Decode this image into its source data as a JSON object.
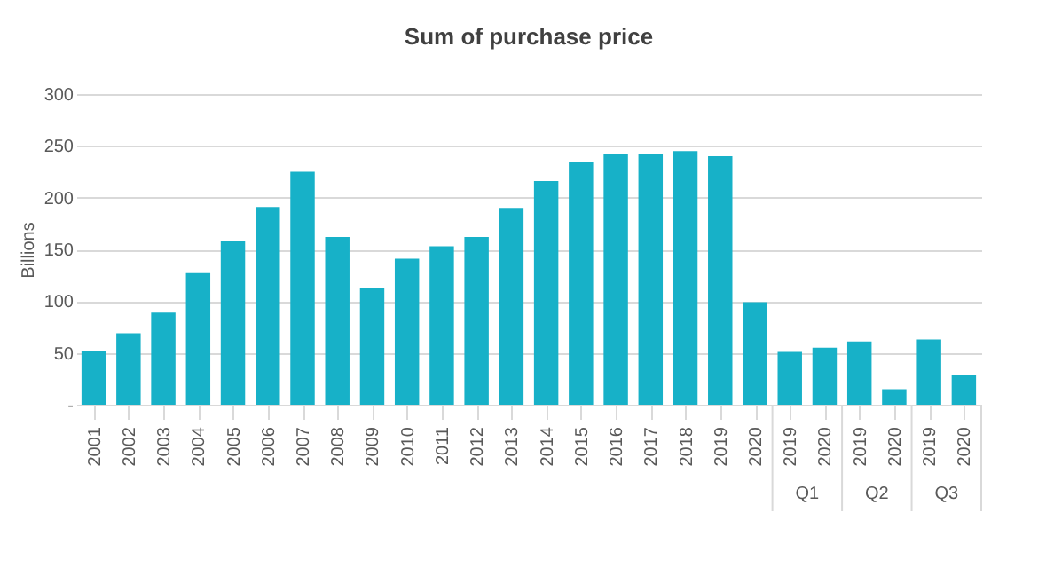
{
  "chart_data": {
    "type": "bar",
    "title": "Sum of purchase price",
    "ylabel": "Billions",
    "categories": [
      "2001",
      "2002",
      "2003",
      "2004",
      "2005",
      "2006",
      "2007",
      "2008",
      "2009",
      "2010",
      "2011",
      "2012",
      "2013",
      "2014",
      "2015",
      "2016",
      "2017",
      "2018",
      "2019",
      "2020",
      "2019",
      "2020",
      "2019",
      "2020",
      "2019",
      "2020"
    ],
    "values": [
      52,
      69,
      89,
      127,
      158,
      191,
      225,
      162,
      113,
      141,
      153,
      162,
      190,
      216,
      234,
      242,
      242,
      245,
      240,
      99,
      51,
      55,
      61,
      15,
      63,
      29
    ],
    "color": "#17b1c8",
    "ylim": [
      0,
      300
    ],
    "yticks": [
      {
        "value": 0,
        "label": "-"
      },
      50,
      100,
      150,
      200,
      250,
      300
    ],
    "grid": "y",
    "annotations": [
      "Q1",
      "Q2",
      "Q3"
    ]
  }
}
